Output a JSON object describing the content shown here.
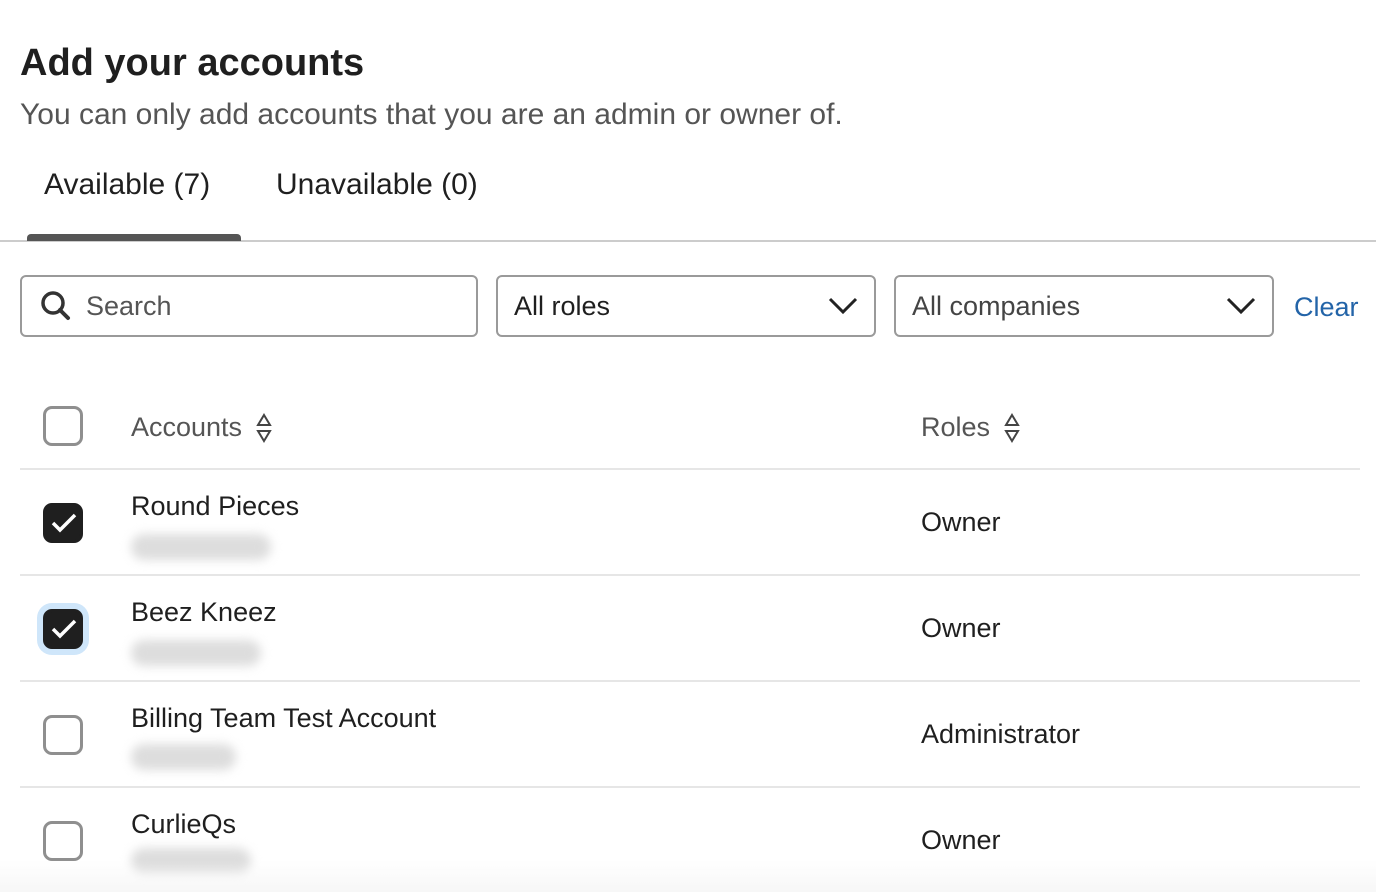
{
  "header": {
    "title": "Add your accounts",
    "subtitle": "You can only add accounts that you are an admin or owner of."
  },
  "tabs": [
    {
      "label": "Available (7)",
      "active": true
    },
    {
      "label": "Unavailable (0)",
      "active": false
    }
  ],
  "filters": {
    "search_placeholder": "Search",
    "roles_value": "All roles",
    "companies_value": "All companies",
    "clear_label": "Clear"
  },
  "table": {
    "columns": [
      "Accounts",
      "Roles"
    ],
    "rows": [
      {
        "name": "Round Pieces",
        "role": "Owner",
        "checked": true
      },
      {
        "name": "Beez Kneez",
        "role": "Owner",
        "checked": true
      },
      {
        "name": "Billing Team Test Account",
        "role": "Administrator",
        "checked": false
      },
      {
        "name": "CurlieQs",
        "role": "Owner",
        "checked": false
      }
    ]
  },
  "colors": {
    "link": "#2364a8",
    "checkbox_checked": "#1f1f1f",
    "focus_ring": "#cfe6fa"
  }
}
